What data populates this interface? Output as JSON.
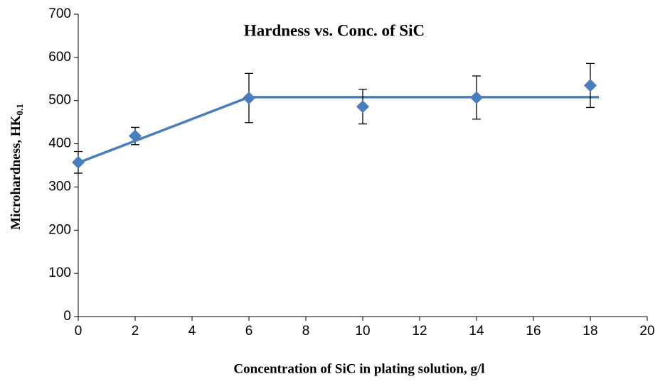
{
  "chart_data": {
    "type": "scatter",
    "title": "Hardness vs. Conc. of SiC",
    "x_label": "Concentration of SiC in plating solution, g/l",
    "y_label": "Microhardness, HK",
    "y_label_subscript": "0.1",
    "xlim": [
      0,
      20
    ],
    "xticks": [
      0,
      2,
      4,
      6,
      8,
      10,
      12,
      14,
      16,
      18,
      20
    ],
    "ylim": [
      0,
      700
    ],
    "yticks": [
      0,
      100,
      200,
      300,
      400,
      500,
      600,
      700
    ],
    "grid": false,
    "series": [
      {
        "type": "scatter",
        "color": "#4a7ebb",
        "x": [
          0,
          2,
          6,
          10,
          14,
          18
        ],
        "values": [
          357,
          418,
          506,
          486,
          507,
          535
        ],
        "errors": [
          25,
          20,
          57,
          40,
          50,
          51
        ]
      },
      {
        "type": "line",
        "color": "#4a7ebb",
        "x": [
          0,
          6,
          18.3
        ],
        "values": [
          356,
          508,
          508
        ]
      }
    ]
  }
}
